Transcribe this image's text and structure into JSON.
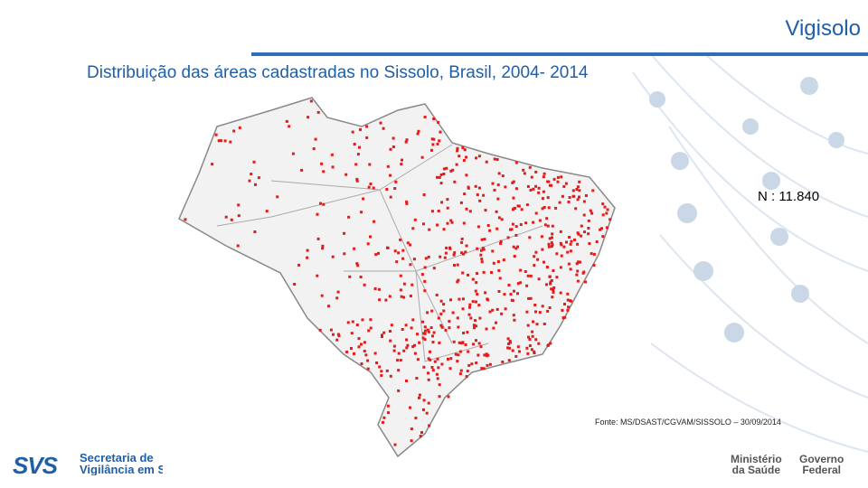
{
  "header": {
    "brand": "Vigisolo",
    "title": "Distribuição das áreas cadastradas no Sissolo, Brasil, 2004- 2014"
  },
  "body": {
    "count": "N : 11.840",
    "source": "Fonte: MS/DSAST/CGVAM/SISSOLO – 30/09/2014"
  },
  "footer": {
    "svs_logo": "SVS",
    "svs_lines": [
      "Secretaria de",
      "Vigilância em S"
    ],
    "ministry_lines": [
      "Ministério",
      "da Saúde"
    ],
    "government_lines": [
      "Governo",
      "Federal"
    ]
  }
}
